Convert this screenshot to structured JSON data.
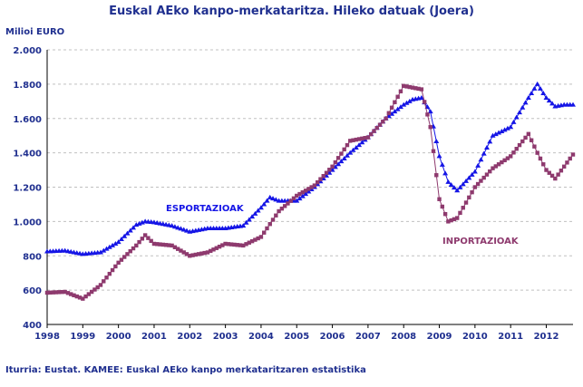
{
  "title": "Euskal AEko kanpo-merkataritza. Hileko datuak (Joera)",
  "ylabel": "Milioi EURO",
  "source": "Iturria: Eustat. KAMEE: Euskal AEko kanpo merkataritzaren estatistika",
  "colors": {
    "esportazioak": "#1515e6",
    "inportazioak": "#8e3a6e",
    "grid": "#c0c0c0",
    "axis": "#000000",
    "text": "#1f2f8f"
  },
  "chart_data": {
    "type": "line",
    "title": "Euskal AEko kanpo-merkataritza. Hileko datuak (Joera)",
    "ylabel": "Milioi EURO",
    "xlabel": "",
    "ylim": [
      400,
      2000
    ],
    "xlim": [
      1998.0,
      2012.75
    ],
    "yticks": [
      400,
      600,
      800,
      1000,
      1200,
      1400,
      1600,
      1800,
      2000
    ],
    "ytick_labels": [
      "400",
      "600",
      "800",
      "1.000",
      "1.200",
      "1.400",
      "1.600",
      "1.800",
      "2.000"
    ],
    "xticks": [
      1998,
      1999,
      2000,
      2001,
      2002,
      2003,
      2004,
      2005,
      2006,
      2007,
      2008,
      2009,
      2010,
      2011,
      2012
    ],
    "xtick_labels": [
      "1998",
      "1999",
      "2000",
      "2001",
      "2002",
      "2003",
      "2004",
      "2005",
      "2006",
      "2007",
      "2008",
      "2009",
      "2010",
      "2011",
      "2012"
    ],
    "grid": "horizontal dashed",
    "series": [
      {
        "name": "ESPORTAZIOAK",
        "marker": "triangle",
        "x": [
          1998.0,
          1998.5,
          1999.0,
          1999.5,
          2000.0,
          2000.5,
          2000.75,
          2001.0,
          2001.5,
          2002.0,
          2002.5,
          2003.0,
          2003.5,
          2004.0,
          2004.25,
          2004.5,
          2005.0,
          2005.5,
          2006.0,
          2006.5,
          2007.0,
          2007.5,
          2008.0,
          2008.25,
          2008.5,
          2008.75,
          2009.0,
          2009.25,
          2009.5,
          2010.0,
          2010.5,
          2011.0,
          2011.5,
          2011.75,
          2012.0,
          2012.25,
          2012.5,
          2012.75
        ],
        "y": [
          825,
          830,
          810,
          820,
          880,
          980,
          1000,
          995,
          975,
          940,
          960,
          960,
          975,
          1080,
          1140,
          1120,
          1120,
          1200,
          1300,
          1400,
          1490,
          1600,
          1680,
          1710,
          1720,
          1640,
          1380,
          1230,
          1180,
          1290,
          1500,
          1550,
          1720,
          1800,
          1720,
          1670,
          1680,
          1680
        ]
      },
      {
        "name": "INPORTAZIOAK",
        "marker": "square",
        "x": [
          1998.0,
          1998.5,
          1999.0,
          1999.5,
          2000.0,
          2000.5,
          2000.75,
          2001.0,
          2001.5,
          2002.0,
          2002.5,
          2003.0,
          2003.5,
          2004.0,
          2004.5,
          2005.0,
          2005.5,
          2006.0,
          2006.5,
          2007.0,
          2007.5,
          2008.0,
          2008.25,
          2008.5,
          2008.75,
          2009.0,
          2009.25,
          2009.5,
          2010.0,
          2010.5,
          2011.0,
          2011.5,
          2011.75,
          2012.0,
          2012.25,
          2012.5,
          2012.75
        ],
        "y": [
          585,
          590,
          550,
          630,
          760,
          860,
          920,
          870,
          860,
          800,
          820,
          870,
          860,
          910,
          1060,
          1150,
          1210,
          1320,
          1470,
          1490,
          1600,
          1790,
          1780,
          1770,
          1550,
          1130,
          1000,
          1020,
          1200,
          1310,
          1380,
          1510,
          1400,
          1300,
          1250,
          1320,
          1390
        ]
      }
    ],
    "annotations": [
      "ESPORTAZIOAK",
      "INPORTAZIOAK"
    ]
  }
}
